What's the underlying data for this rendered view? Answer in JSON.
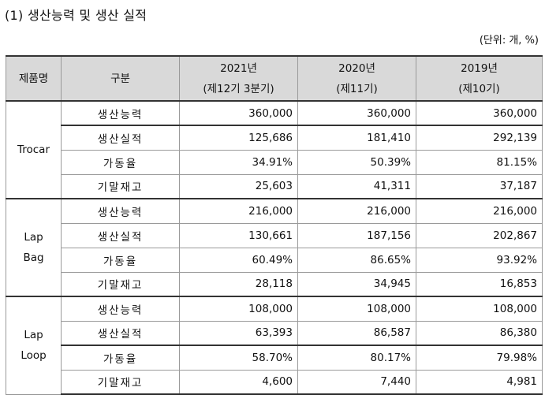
{
  "title": "(1) 생산능력 및 생산 실적",
  "unit": "(단위: 개, %)",
  "header": {
    "product": "제품명",
    "category": "구분",
    "col1_year": "2021년",
    "col1_period": "(제12기 3분기)",
    "col2_year": "2020년",
    "col2_period": "(제11기)",
    "col3_year": "2019년",
    "col3_period": "(제10기)"
  },
  "groups": [
    {
      "name_line1": "Trocar",
      "name_line2": "",
      "rows": [
        {
          "item": "생산능력",
          "v1": "360,000",
          "v2": "360,000",
          "v3": "360,000"
        },
        {
          "item": "생산실적",
          "v1": "125,686",
          "v2": "181,410",
          "v3": "292,139"
        },
        {
          "item": "가동율",
          "v1": "34.91%",
          "v2": "50.39%",
          "v3": "81.15%"
        },
        {
          "item": "기말재고",
          "v1": "25,603",
          "v2": "41,311",
          "v3": "37,187"
        }
      ]
    },
    {
      "name_line1": "Lap",
      "name_line2": "Bag",
      "rows": [
        {
          "item": "생산능력",
          "v1": "216,000",
          "v2": "216,000",
          "v3": "216,000"
        },
        {
          "item": "생산실적",
          "v1": "130,661",
          "v2": "187,156",
          "v3": "202,867"
        },
        {
          "item": "가동율",
          "v1": "60.49%",
          "v2": "86.65%",
          "v3": "93.92%"
        },
        {
          "item": "기말재고",
          "v1": "28,118",
          "v2": "34,945",
          "v3": "16,853"
        }
      ]
    },
    {
      "name_line1": "Lap",
      "name_line2": "Loop",
      "rows": [
        {
          "item": "생산능력",
          "v1": "108,000",
          "v2": "108,000",
          "v3": "108,000"
        },
        {
          "item": "생산실적",
          "v1": "63,393",
          "v2": "86,587",
          "v3": "86,380"
        },
        {
          "item": "가동율",
          "v1": "58.70%",
          "v2": "80.17%",
          "v3": "79.98%"
        },
        {
          "item": "기말재고",
          "v1": "4,600",
          "v2": "7,440",
          "v3": "4,981"
        }
      ]
    }
  ]
}
